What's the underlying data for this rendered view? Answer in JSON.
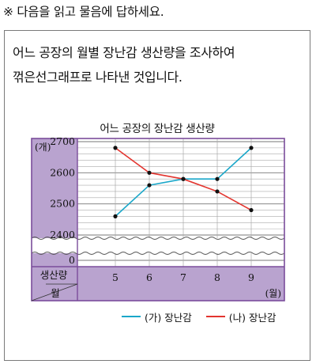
{
  "instruction": "※ 다음을 읽고 물음에 답하세요.",
  "problem": {
    "line1": "어느 공장의 월별 장난감 생산량을 조사하여",
    "line2": "꺾은선그래프로 나타낸 것입니다."
  },
  "colors": {
    "series_a": "#1aa7c9",
    "series_b": "#e3352f",
    "frame": "#7b4d9b",
    "fill": "#b9a3cf"
  },
  "chart_data": {
    "type": "line",
    "title": "어느 공장의 장난감 생산량",
    "y_unit": "(개)",
    "x_unit": "(월)",
    "corner_top": "생산량",
    "corner_bottom": "월",
    "x": [
      5,
      6,
      7,
      8,
      9
    ],
    "x_ticks": [
      "5",
      "6",
      "7",
      "8",
      "9"
    ],
    "y_ticks": [
      "2700",
      "2600",
      "2500",
      "2400"
    ],
    "y_zero": "0",
    "ylim": [
      2400,
      2700
    ],
    "y_axis_break": true,
    "grid": true,
    "legend_position": "bottom",
    "series": [
      {
        "name": "(가) 장난감",
        "color": "#1aa7c9",
        "values": [
          2460,
          2560,
          2580,
          2580,
          2680
        ]
      },
      {
        "name": "(나) 장난감",
        "color": "#e3352f",
        "values": [
          2680,
          2600,
          2580,
          2540,
          2480
        ]
      }
    ]
  }
}
